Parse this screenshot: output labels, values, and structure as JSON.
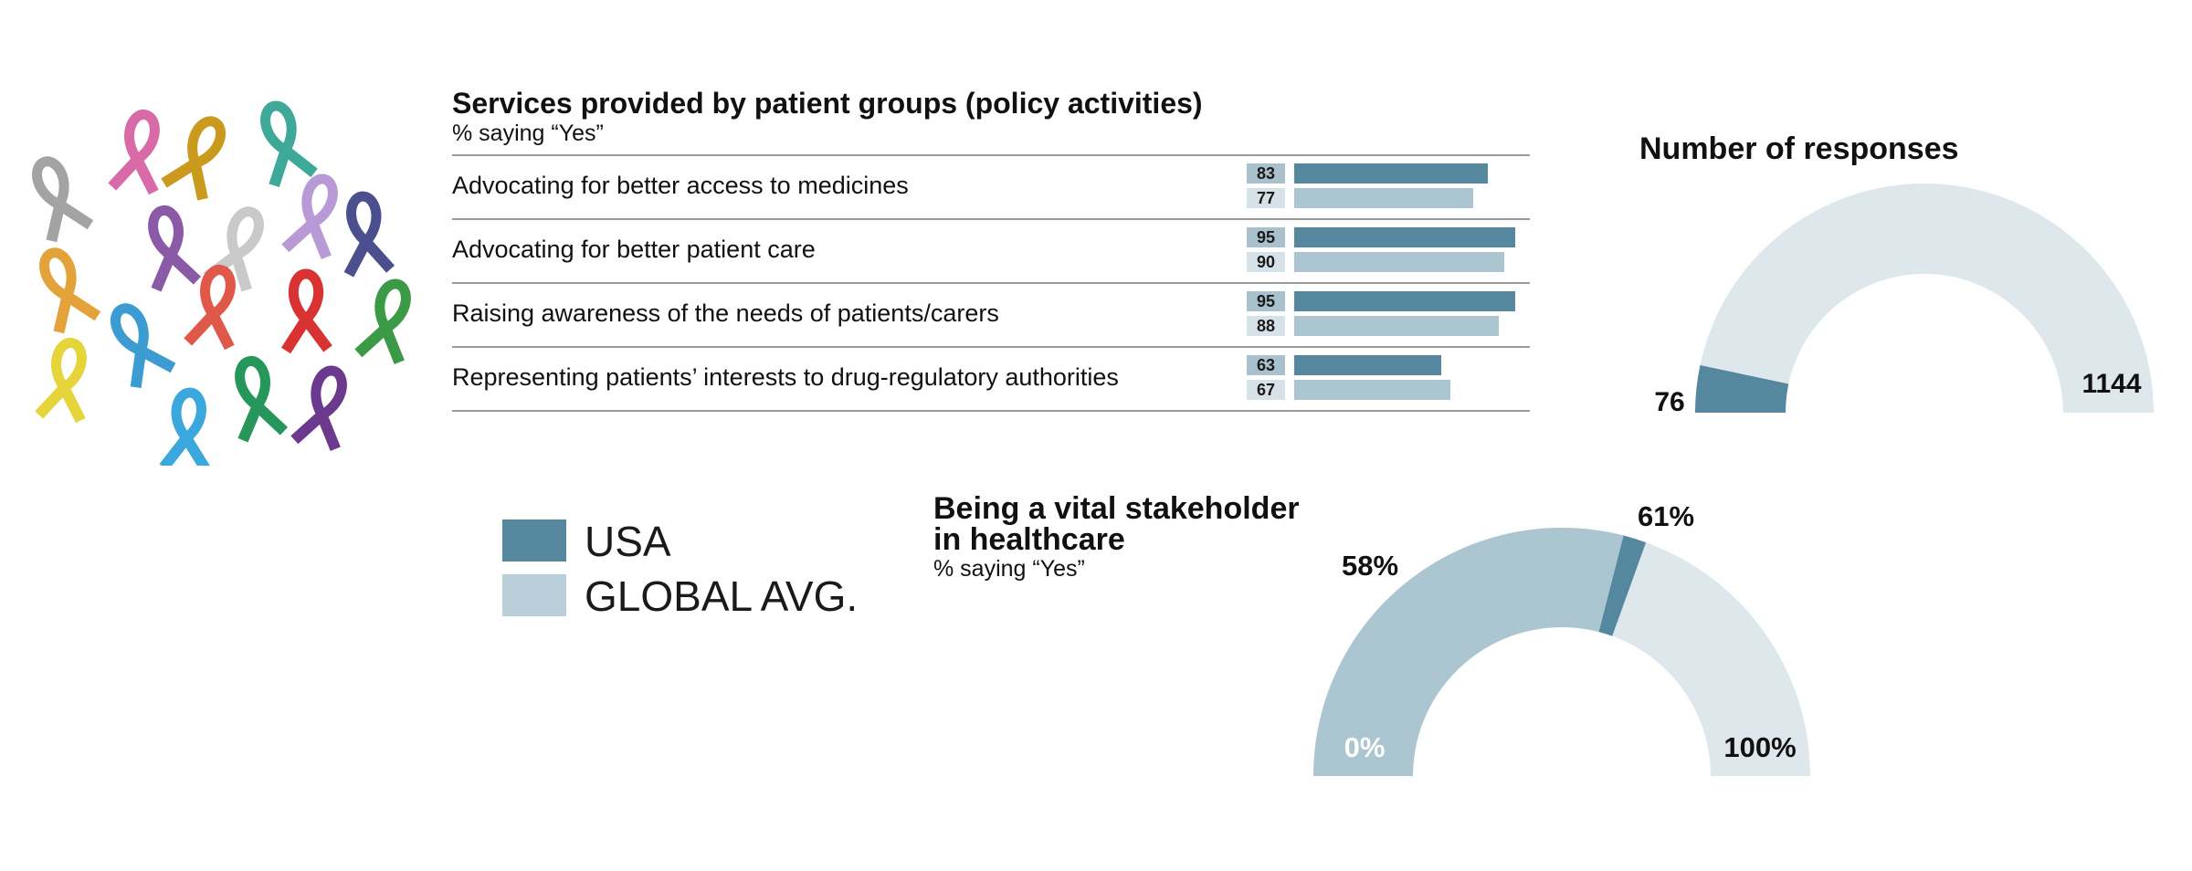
{
  "colors": {
    "usa": "#55889f",
    "global": "#abc5d1",
    "gauge_bg": "#dee7ec",
    "badge_usa": "#a9c1cd",
    "badge_global": "#d6e2e8"
  },
  "decoration": {
    "image": "awareness-ribbons-cluster"
  },
  "legend": [
    {
      "label": "USA",
      "color": "#55889f"
    },
    {
      "label": "GLOBAL AVG.",
      "color": "#b9ced8"
    }
  ],
  "chart_data": [
    {
      "type": "bar",
      "orientation": "horizontal",
      "title": "Services provided by patient groups (policy activities)",
      "subtitle": "% saying “Yes”",
      "categories": [
        "Advocating for better access to medicines",
        "Advocating for better patient care",
        "Raising awareness of the needs of patients/carers",
        "Representing patients’ interests to drug-regulatory authorities"
      ],
      "series": [
        {
          "name": "USA",
          "values": [
            83,
            95,
            95,
            63
          ]
        },
        {
          "name": "GLOBAL AVG.",
          "values": [
            77,
            90,
            88,
            67
          ]
        }
      ],
      "xlim": [
        0,
        100
      ]
    },
    {
      "type": "pie",
      "style": "semicircle-gauge",
      "title": "Number of responses",
      "value": 76,
      "total": 1144,
      "value_label": "76",
      "total_label": "1144"
    },
    {
      "type": "pie",
      "style": "semicircle-gauge",
      "title": "Being a vital stakeholder in healthcare",
      "title_lines": [
        "Being a vital stakeholder",
        "in healthcare"
      ],
      "subtitle": "% saying “Yes”",
      "series": [
        {
          "name": "GLOBAL AVG.",
          "value": 58,
          "label": "58%"
        },
        {
          "name": "USA",
          "value": 61,
          "label": "61%"
        }
      ],
      "range": [
        0,
        100
      ],
      "min_label": "0%",
      "max_label": "100%"
    }
  ]
}
